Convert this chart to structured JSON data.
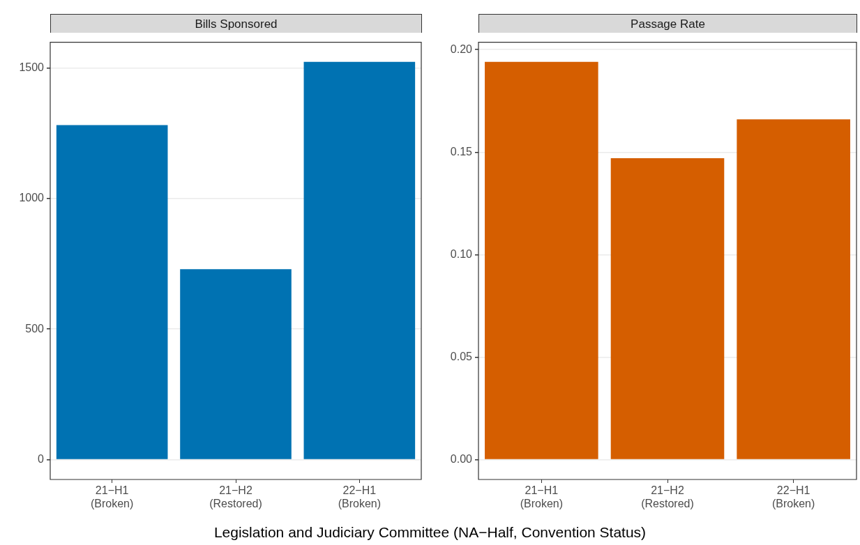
{
  "chart_data": [
    {
      "type": "bar",
      "title": "Bills Sponsored",
      "xlabel": "Legislation and Judiciary Committee (NA−Half, Convention Status)",
      "categories": [
        "21−H1\n(Broken)",
        "21−H2\n(Restored)",
        "22−H1\n(Broken)"
      ],
      "values": [
        1281,
        729,
        1523
      ],
      "color": "#0072b2",
      "ylim": [
        -76,
        1598
      ],
      "yticks": [
        0,
        500,
        1000,
        1500
      ],
      "grid": "y"
    },
    {
      "type": "bar",
      "title": "Passage Rate",
      "categories": [
        "21−H1\n(Broken)",
        "21−H2\n(Restored)",
        "22−H1\n(Broken)"
      ],
      "values": [
        0.194,
        0.147,
        0.166
      ],
      "color": "#d55e00",
      "ylim": [
        -0.0097,
        0.2036
      ],
      "yticks": [
        {
          "value": 0,
          "label": "0.00"
        },
        {
          "value": 0.05,
          "label": "0.05"
        },
        {
          "value": 0.1,
          "label": "0.10"
        },
        {
          "value": 0.15,
          "label": "0.15"
        },
        {
          "value": 0.2,
          "label": "0.20"
        }
      ],
      "grid": "y"
    }
  ]
}
